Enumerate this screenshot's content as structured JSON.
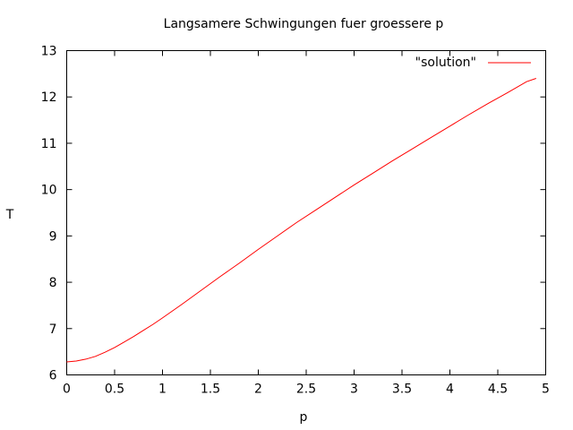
{
  "chart_data": {
    "type": "line",
    "title": "Langsamere Schwingungen fuer groessere p",
    "xlabel": "p",
    "ylabel": "T",
    "xlim": [
      0,
      5
    ],
    "ylim": [
      6,
      13
    ],
    "xticks": [
      "0",
      "0.5",
      "1",
      "1.5",
      "2",
      "2.5",
      "3",
      "3.5",
      "4",
      "4.5",
      "5"
    ],
    "yticks": [
      "6",
      "7",
      "8",
      "9",
      "10",
      "11",
      "12",
      "13"
    ],
    "grid": false,
    "legend_position": "top-right",
    "series": [
      {
        "name": "\"solution\"",
        "color": "#ff0000",
        "x": [
          0,
          0.1,
          0.2,
          0.3,
          0.4,
          0.5,
          0.6,
          0.7,
          0.8,
          0.9,
          1.0,
          1.2,
          1.4,
          1.6,
          1.8,
          2.0,
          2.2,
          2.4,
          2.6,
          2.8,
          3.0,
          3.2,
          3.4,
          3.6,
          3.8,
          4.0,
          4.2,
          4.4,
          4.6,
          4.8,
          4.9
        ],
        "y": [
          6.28,
          6.3,
          6.34,
          6.4,
          6.49,
          6.59,
          6.71,
          6.83,
          6.96,
          7.09,
          7.23,
          7.52,
          7.82,
          8.12,
          8.41,
          8.71,
          9.0,
          9.29,
          9.56,
          9.83,
          10.1,
          10.36,
          10.62,
          10.87,
          11.12,
          11.37,
          11.62,
          11.86,
          12.09,
          12.33,
          12.4
        ]
      }
    ]
  }
}
